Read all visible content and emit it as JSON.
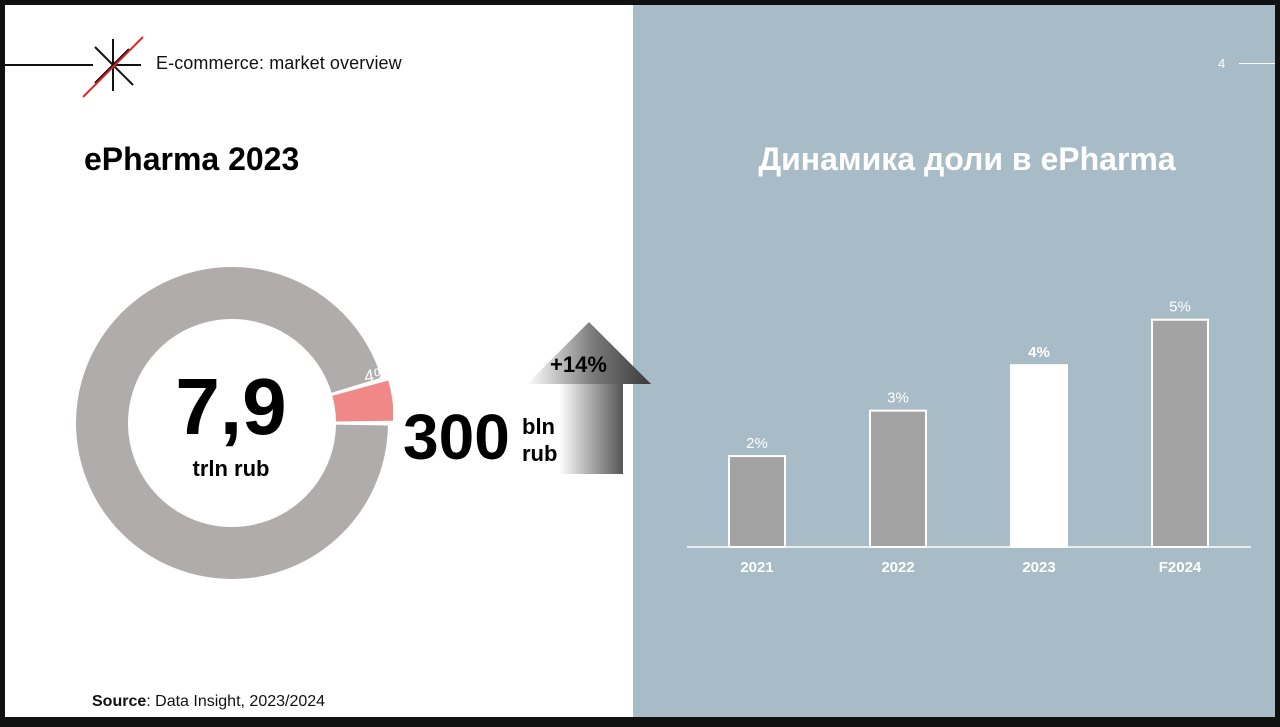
{
  "header": {
    "title": "E-commerce: market overview",
    "page_number": "4"
  },
  "left": {
    "title": "ePharma 2023",
    "market_value": "7,9",
    "market_unit": "trln rub",
    "online_share": "4%",
    "online_amount": "300",
    "online_unit_top": "bln",
    "online_unit_bottom": "rub",
    "growth": "+14%",
    "donut_online_share": 0.04
  },
  "right": {
    "title": "Динамика доли в ePharma"
  },
  "source": {
    "label": "Source",
    "text": ": Data Insight, 2023/2024"
  },
  "colors": {
    "right_panel": "#a8bcc7",
    "donut_ring": "#b0acac",
    "donut_highlight": "#f08888",
    "bar_default": "#a3a3a3",
    "bar_highlight": "#ffffff",
    "logo_red": "#e0262b"
  },
  "chart_data": {
    "type": "bar",
    "categories": [
      "2021",
      "2022",
      "2023",
      "F2024"
    ],
    "values": [
      2,
      3,
      4,
      5
    ],
    "value_labels": [
      "2%",
      "3%",
      "4%",
      "5%"
    ],
    "highlight": "2023",
    "ylim": [
      0,
      5.5
    ],
    "grid": false
  }
}
